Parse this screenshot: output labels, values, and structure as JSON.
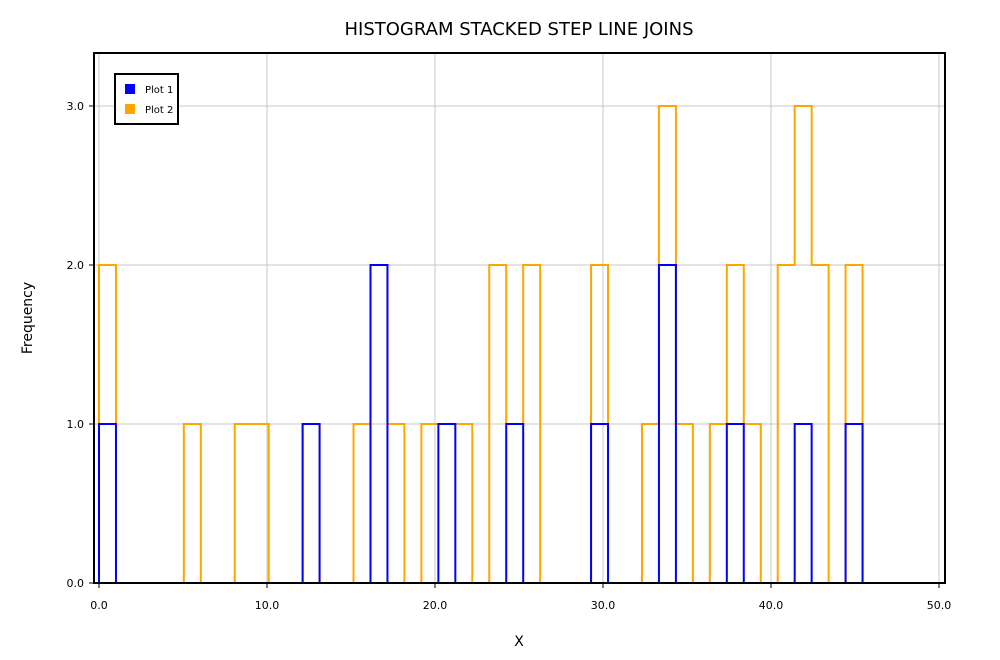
{
  "chart_data": {
    "type": "histogram-step",
    "title": "HISTOGRAM STACKED STEP LINE JOINS",
    "xlabel": "X",
    "ylabel": "Frequency",
    "xlim": [
      0,
      50
    ],
    "ylim": [
      0,
      3.3
    ],
    "x_ticks": [
      0,
      10,
      20,
      30,
      40,
      50
    ],
    "x_tick_labels": [
      "0.0",
      "10.0",
      "20.0",
      "30.0",
      "40.0",
      "50.0"
    ],
    "y_ticks": [
      0,
      1,
      2,
      3
    ],
    "y_tick_labels": [
      "0.0",
      "1.0",
      "2.0",
      "3.0"
    ],
    "grid": true,
    "legend_position": "top-left",
    "bin_edges": [
      0.0,
      1.01,
      2.02,
      3.03,
      4.04,
      5.05,
      6.06,
      7.07,
      8.08,
      9.09,
      10.1,
      11.11,
      12.12,
      13.13,
      14.14,
      15.15,
      16.16,
      17.17,
      18.18,
      19.19,
      20.2,
      21.21,
      22.22,
      23.23,
      24.24,
      25.25,
      26.26,
      27.27,
      28.28,
      29.29,
      30.3,
      31.31,
      32.32,
      33.33,
      34.34,
      35.35,
      36.36,
      37.37,
      38.38,
      39.39,
      40.4,
      41.41,
      42.42,
      43.43,
      44.44,
      45.45,
      46.46
    ],
    "series": [
      {
        "name": "Plot 1",
        "color": "#0000ff",
        "values": [
          1,
          0,
          0,
          0,
          0,
          0,
          0,
          0,
          0,
          0,
          0,
          0,
          1,
          0,
          0,
          0,
          2,
          0,
          0,
          0,
          1,
          0,
          0,
          0,
          1,
          0,
          0,
          0,
          0,
          1,
          0,
          0,
          0,
          2,
          0,
          0,
          0,
          1,
          0,
          0,
          0,
          1,
          0,
          0,
          1,
          0
        ]
      },
      {
        "name": "Plot 2",
        "color": "#ffa500",
        "values": [
          2,
          0,
          0,
          0,
          0,
          1,
          0,
          0,
          1,
          1,
          0,
          0,
          1,
          0,
          0,
          1,
          2,
          1,
          0,
          1,
          1,
          1,
          0,
          2,
          1,
          2,
          0,
          0,
          0,
          2,
          0,
          0,
          1,
          3,
          1,
          0,
          1,
          2,
          1,
          0,
          2,
          3,
          2,
          0,
          2,
          0
        ]
      }
    ]
  }
}
